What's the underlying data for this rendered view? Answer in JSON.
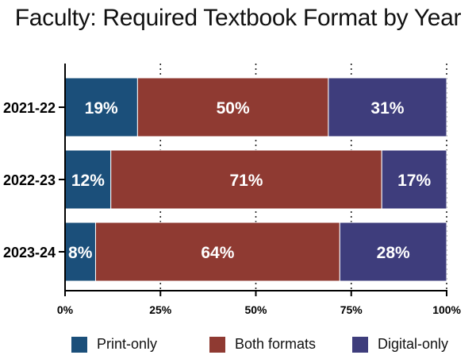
{
  "chart_data": {
    "type": "bar",
    "orientation": "horizontal",
    "stacked": true,
    "title": "Faculty: Required Textbook Format by Year",
    "categories": [
      "2021-22",
      "2022-23",
      "2023-24"
    ],
    "series": [
      {
        "name": "Print-only",
        "color": "#1b4f7a",
        "values": [
          19,
          12,
          8
        ]
      },
      {
        "name": "Both formats",
        "color": "#8f3a32",
        "values": [
          50,
          71,
          64
        ]
      },
      {
        "name": "Digital-only",
        "color": "#3e3d7c",
        "values": [
          31,
          17,
          28
        ]
      }
    ],
    "data_labels": [
      [
        "19%",
        "50%",
        "31%"
      ],
      [
        "12%",
        "71%",
        "17%"
      ],
      [
        "8%",
        "64%",
        "28%"
      ]
    ],
    "xlim": [
      0,
      100
    ],
    "xticks": [
      0,
      25,
      50,
      75,
      100
    ],
    "xtick_labels": [
      "0%",
      "25%",
      "50%",
      "75%",
      "100%"
    ],
    "xlabel": "",
    "ylabel": "",
    "grid": "vertical dotted",
    "legend_position": "bottom"
  }
}
